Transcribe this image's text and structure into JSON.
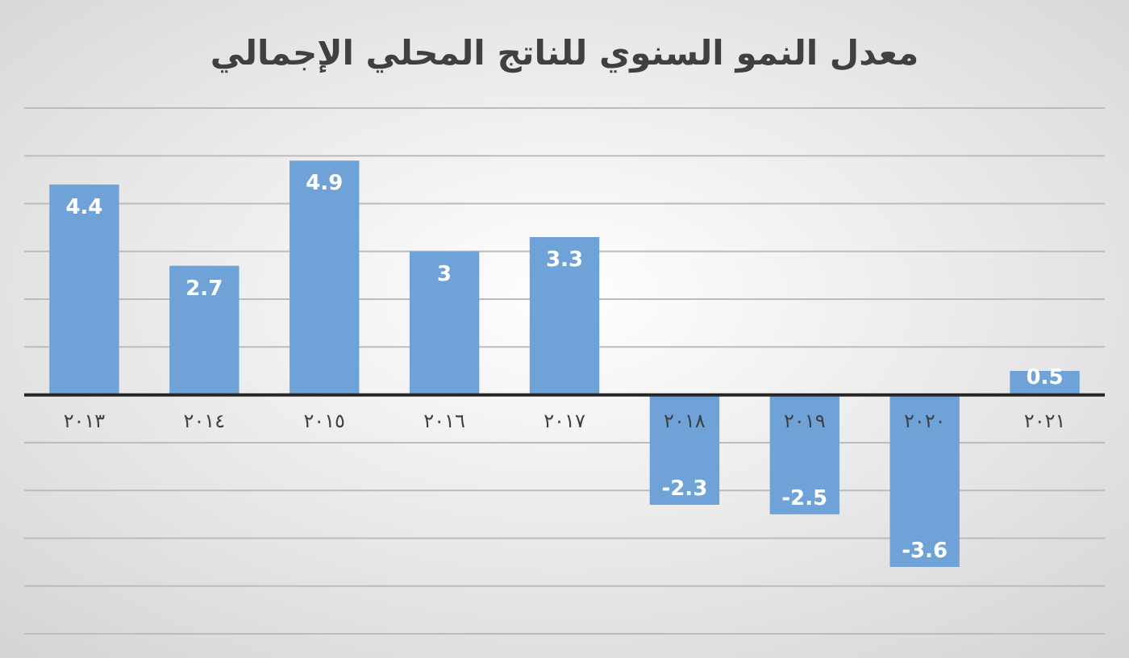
{
  "chart_data": {
    "type": "bar",
    "title": "معدل النمو السنوي للناتج المحلي الإجمالي",
    "categories": [
      "٢٠١٣",
      "٢٠١٤",
      "٢٠١٥",
      "٢٠١٦",
      "٢٠١٧",
      "٢٠١٨",
      "٢٠١٩",
      "٢٠٢٠",
      "٢٠٢١"
    ],
    "values": [
      4.4,
      2.7,
      4.9,
      3,
      3.3,
      -2.3,
      -2.5,
      -3.6,
      0.5
    ],
    "color": "#6fa3d8",
    "ylim": [
      -5,
      6
    ],
    "yticks": [
      {
        "value": -5,
        "label": null
      },
      {
        "value": -4,
        "label": null
      },
      {
        "value": -3,
        "label": null
      },
      {
        "value": -2,
        "label": null
      },
      {
        "value": -1,
        "label": null
      },
      {
        "value": 0,
        "label": null
      },
      {
        "value": 1,
        "label": null
      },
      {
        "value": 2,
        "label": null
      },
      {
        "value": 3,
        "label": null
      },
      {
        "value": 4,
        "label": null
      },
      {
        "value": 5,
        "label": null
      },
      {
        "value": 6,
        "label": null
      }
    ],
    "grid": "y",
    "data_labels": true
  }
}
